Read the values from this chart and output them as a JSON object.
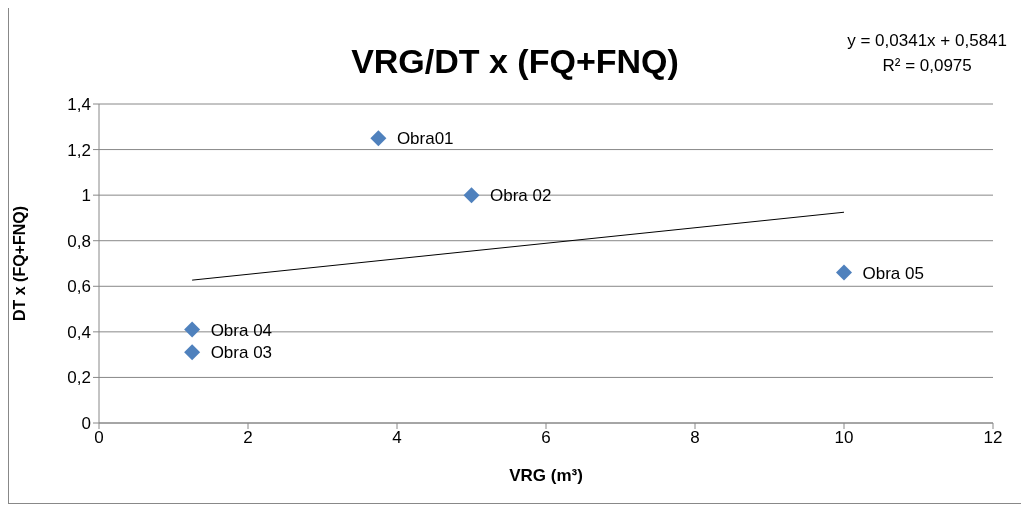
{
  "chart_data": {
    "type": "scatter",
    "title": "VRG/DT x (FQ+FNQ)",
    "xlabel": "VRG (m³)",
    "ylabel": "DT x (FQ+FNQ)",
    "annotations": [
      "y = 0,0341x + 0,5841",
      "R² = 0,0975"
    ],
    "xlim": [
      0,
      12
    ],
    "xticks": [
      0,
      2,
      4,
      6,
      8,
      10,
      12
    ],
    "ylim": [
      0,
      1.4
    ],
    "yticks": [
      0,
      {
        "value": 0.2,
        "label": "0,2"
      },
      {
        "value": 0.4,
        "label": "0,4"
      },
      {
        "value": 0.6,
        "label": "0,6"
      },
      {
        "value": 0.8,
        "label": "0,8"
      },
      1,
      {
        "value": 1.2,
        "label": "1,2"
      },
      {
        "value": 1.4,
        "label": "1,4"
      }
    ],
    "grid": "y",
    "legend": false,
    "marker": "diamond",
    "series": [
      {
        "color": "#4f81bd",
        "x": [
          3.75,
          5,
          10,
          1.25,
          1.25
        ],
        "values": [
          1.25,
          1,
          0.66,
          0.41,
          0.31
        ],
        "value_labels": [
          "Obra01",
          "Obra 02",
          "Obra 05",
          "Obra 04",
          "Obra 03"
        ]
      },
      {
        "type": "line",
        "color": "#000000",
        "x": [
          1.25,
          10
        ],
        "values": [
          0.627,
          0.925
        ],
        "marker": "none",
        "line_style": "solid"
      }
    ]
  }
}
